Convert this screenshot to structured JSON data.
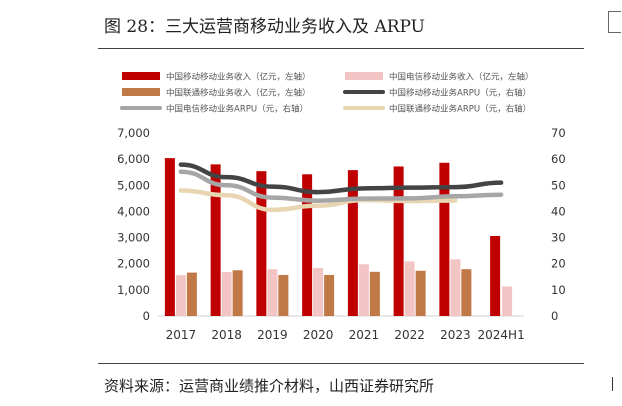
{
  "header": {
    "title": "图 28：三大运营商移动业务收入及 ARPU"
  },
  "footer": {
    "source": "资料来源：运营商业绩推介材料，山西证券研究所"
  },
  "chart_data": {
    "type": "bar",
    "categories": [
      "2017",
      "2018",
      "2019",
      "2020",
      "2021",
      "2022",
      "2023",
      "2024H1"
    ],
    "y_left": {
      "ticks": [
        "0",
        "1,000",
        "2,000",
        "3,000",
        "4,000",
        "5,000",
        "6,000",
        "7,000"
      ],
      "range": [
        0,
        7000
      ]
    },
    "y_right": {
      "ticks": [
        "0",
        "10",
        "20",
        "30",
        "40",
        "50",
        "60",
        "70"
      ],
      "range": [
        0,
        70
      ]
    },
    "legend_position": "top",
    "grid": false,
    "bar_series": [
      {
        "name": "中国移动移动业务收入（亿元，左轴）",
        "color": "#c00000",
        "values": [
          6040,
          5800,
          5540,
          5420,
          5580,
          5720,
          5860,
          3060
        ]
      },
      {
        "name": "中国电信移动业务收入（亿元，左轴）",
        "color": "#f2c4c4",
        "values": [
          1560,
          1680,
          1790,
          1840,
          1980,
          2090,
          2170,
          1130
        ]
      },
      {
        "name": "中国联通移动业务收入（亿元，左轴）",
        "color": "#c07846",
        "values": [
          1660,
          1750,
          1570,
          1570,
          1690,
          1730,
          1790,
          null
        ]
      }
    ],
    "line_series": [
      {
        "name": "中国移动移动业务ARPU（元，右轴）",
        "color": "#444444",
        "values": [
          57.9,
          53.1,
          49.5,
          47.4,
          48.8,
          49.1,
          49.3,
          51.0
        ]
      },
      {
        "name": "中国电信移动业务ARPU（元，右轴）",
        "color": "#a6a6a6",
        "values": [
          55.2,
          50.0,
          45.3,
          44.1,
          44.9,
          45.0,
          45.8,
          46.4
        ]
      },
      {
        "name": "中国联通移动业务ARPU（元，右轴）",
        "color": "#e8d6b3",
        "values": [
          48.0,
          46.2,
          40.6,
          42.2,
          44.3,
          44.0,
          44.2,
          null
        ]
      }
    ]
  }
}
